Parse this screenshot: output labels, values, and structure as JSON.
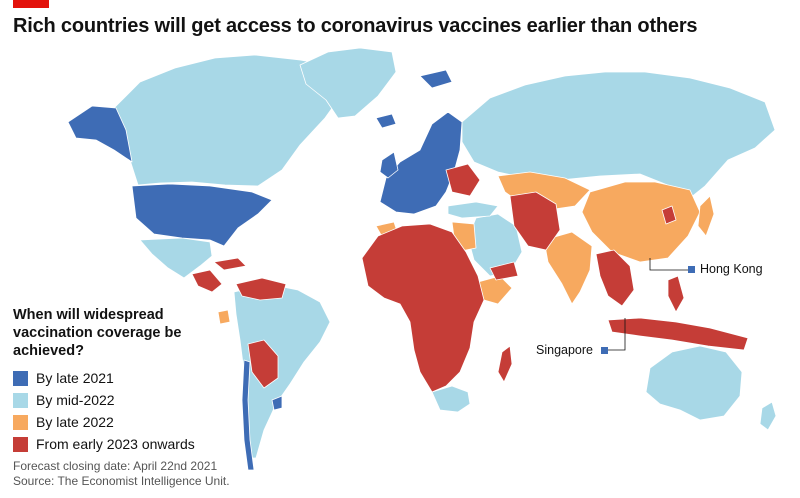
{
  "header": {
    "title": "Rich countries will get access to coronavirus vaccines earlier than others"
  },
  "colors": {
    "by_late_2021": "#3e6cb5",
    "by_mid_2022": "#a8d8e7",
    "by_late_2022": "#f7a95f",
    "from_early_2023": "#c53d37",
    "accent": "#e3120b"
  },
  "legend": {
    "title": "When will widespread vaccination coverage be achieved?",
    "items": [
      {
        "label": "By late 2021",
        "color": "#3e6cb5"
      },
      {
        "label": "By mid-2022",
        "color": "#a8d8e7"
      },
      {
        "label": "By late 2022",
        "color": "#f7a95f"
      },
      {
        "label": "From early 2023 onwards",
        "color": "#c53d37"
      }
    ]
  },
  "callouts": {
    "hong_kong": "Hong Kong",
    "singapore": "Singapore"
  },
  "footer": {
    "forecast": "Forecast closing date: April 22nd 2021",
    "source": "Source: The Economist Intelligence Unit."
  }
}
